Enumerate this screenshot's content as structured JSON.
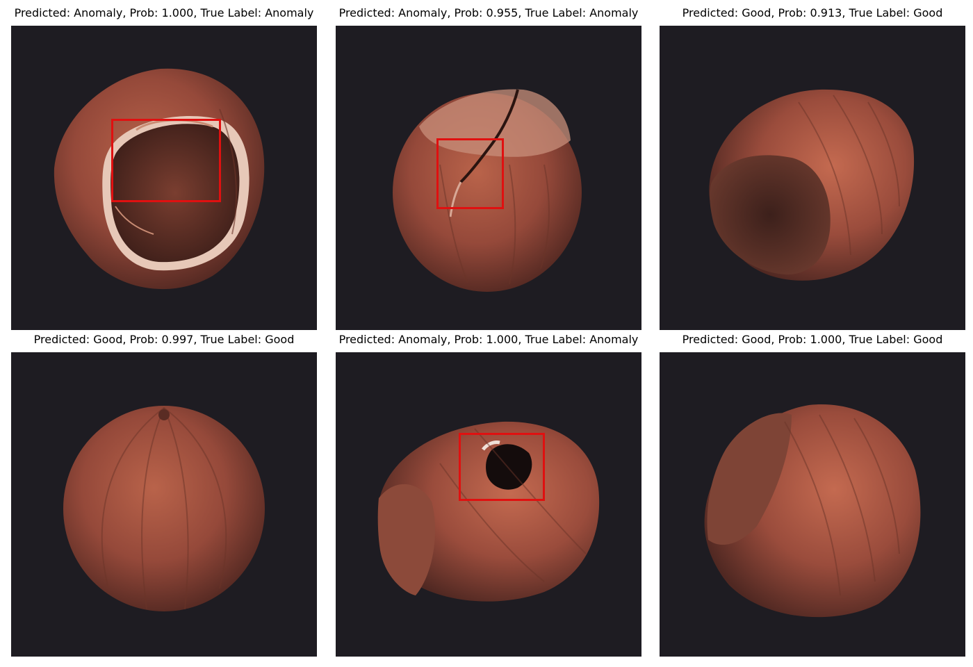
{
  "panels": [
    {
      "title": "Predicted: Anomaly, Prob: 1.000, True Label: Anomaly",
      "predicted": "Anomaly",
      "prob": 1.0,
      "true_label": "Anomaly"
    },
    {
      "title": "Predicted: Anomaly, Prob: 0.955, True Label: Anomaly",
      "predicted": "Anomaly",
      "prob": 0.955,
      "true_label": "Anomaly"
    },
    {
      "title": "Predicted: Good, Prob: 0.913, True Label: Good",
      "predicted": "Good",
      "prob": 0.913,
      "true_label": "Good"
    },
    {
      "title": "Predicted: Good, Prob: 0.997, True Label: Good",
      "predicted": "Good",
      "prob": 0.997,
      "true_label": "Good"
    },
    {
      "title": "Predicted: Anomaly, Prob: 1.000, True Label: Anomaly",
      "predicted": "Anomaly",
      "prob": 1.0,
      "true_label": "Anomaly"
    },
    {
      "title": "Predicted: Good, Prob: 1.000, True Label: Good",
      "predicted": "Good",
      "prob": 1.0,
      "true_label": "Good"
    }
  ],
  "colors": {
    "background": "#1e1c22",
    "nut": "#9a4e3a",
    "box": "#e01010"
  }
}
